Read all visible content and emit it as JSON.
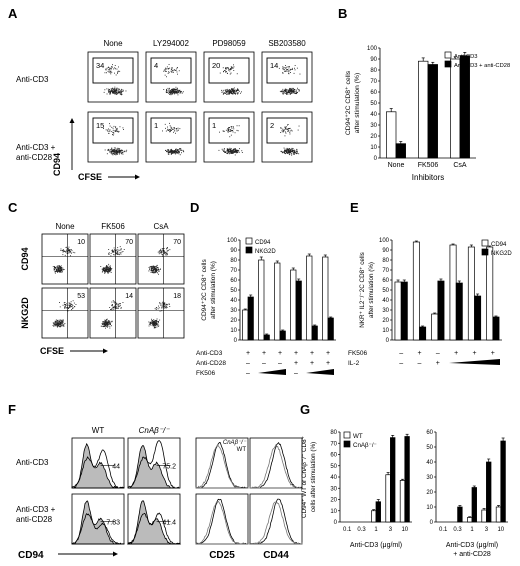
{
  "panels": [
    "A",
    "B",
    "C",
    "D",
    "E",
    "F",
    "G"
  ],
  "A": {
    "columns": [
      "None",
      "LY294002",
      "PD98059",
      "SB203580"
    ],
    "rows": [
      "Anti-CD3",
      [
        "Anti-CD3 +",
        "anti-CD28"
      ]
    ],
    "values": [
      [
        "34",
        "4",
        "20",
        "14"
      ],
      [
        "15",
        "1",
        "1",
        "2"
      ]
    ],
    "ylabel": "CD94",
    "xlabel": "CFSE"
  },
  "C": {
    "columns": [
      "None",
      "FK506",
      "CsA"
    ],
    "rows": [
      "CD94",
      "NKG2D"
    ],
    "values": [
      [
        "10",
        "70",
        "70"
      ],
      [
        "53",
        "14",
        "18"
      ]
    ],
    "xlabel": "CFSE"
  },
  "F": {
    "columns": [
      "WT",
      "CnAβ⁻/⁻"
    ],
    "rows": [
      "Anti-CD3",
      [
        "Anti-CD3 +",
        "anti-CD28"
      ]
    ],
    "values": [
      [
        "44",
        "75.2"
      ],
      [
        "7.83",
        "41.4"
      ]
    ],
    "xlabels": [
      "CD94",
      "CD25",
      "CD44"
    ],
    "overlay_legend": [
      "CnAβ⁻/⁻",
      "WT"
    ]
  },
  "chart_data": [
    {
      "panel": "B",
      "type": "bar",
      "categories": [
        "None",
        "FK506",
        "CsA"
      ],
      "series": [
        {
          "name": "Anti-CD3",
          "values": [
            42,
            88,
            90
          ],
          "errors": [
            3,
            3,
            2
          ],
          "color": "#ffffff"
        },
        {
          "name": "Anti-CD3 + anti-CD28",
          "values": [
            13,
            85,
            93
          ],
          "errors": [
            2,
            2,
            3
          ],
          "color": "#000000"
        }
      ],
      "ylabel": [
        "CD94⁺2C CD8⁺ cells",
        "after stimulation (%)"
      ],
      "xlabel": "Inhibitors",
      "ylim": [
        0,
        100
      ],
      "yticks": [
        "0",
        "10",
        "20",
        "30",
        "40",
        "50",
        "60",
        "70",
        "80",
        "90",
        "100"
      ]
    },
    {
      "panel": "D",
      "type": "bar",
      "groups": 6,
      "series": [
        {
          "name": "CD94",
          "values": [
            30,
            80,
            77,
            70,
            84,
            83
          ],
          "errors": [
            1,
            3,
            2,
            2,
            2,
            2
          ],
          "color": "#ffffff"
        },
        {
          "name": "NKG2D",
          "values": [
            43,
            5,
            9,
            59,
            14,
            22
          ],
          "errors": [
            2,
            1,
            1,
            2,
            1,
            1
          ],
          "color": "#000000"
        }
      ],
      "ylabel": [
        "CD94⁺2C CD8⁺ cells",
        "after stimulation (%)"
      ],
      "ylim": [
        0,
        100
      ],
      "yticks": [
        "0",
        "10",
        "20",
        "30",
        "40",
        "50",
        "60",
        "70",
        "80",
        "90",
        "100"
      ],
      "conditions": [
        {
          "label": "Anti-CD3",
          "marks": [
            "+",
            "+",
            "+",
            "+",
            "+",
            "+"
          ]
        },
        {
          "label": "Anti-CD28",
          "marks": [
            "–",
            "–",
            "–",
            "+",
            "+",
            "+"
          ]
        },
        {
          "label": "FK506",
          "marks": [
            "–",
            "ramp",
            "ramp",
            "–",
            "ramp",
            "ramp"
          ]
        }
      ]
    },
    {
      "panel": "E",
      "type": "bar",
      "groups": 6,
      "series": [
        {
          "name": "CD94",
          "values": [
            58,
            98,
            26,
            95,
            93,
            93
          ],
          "errors": [
            2,
            1,
            1,
            1,
            2,
            1
          ],
          "color": "#ffffff"
        },
        {
          "name": "NKG2D",
          "values": [
            58,
            13,
            59,
            57,
            44,
            23
          ],
          "errors": [
            2,
            1,
            2,
            2,
            2,
            1
          ],
          "color": "#000000"
        }
      ],
      "ylabel": [
        "NKR⁺ IL2⁻/⁻2C CD8⁺ cells",
        "after stimulation (%)"
      ],
      "ylim": [
        0,
        100
      ],
      "yticks": [
        "0",
        "10",
        "20",
        "30",
        "40",
        "50",
        "60",
        "70",
        "80",
        "90",
        "100"
      ],
      "conditions": [
        {
          "label": "FK506",
          "marks": [
            "–",
            "+",
            "–",
            "+",
            "+",
            "+"
          ]
        },
        {
          "label": "IL-2",
          "marks": [
            "–",
            "–",
            "+",
            "ramp",
            "ramp",
            "ramp"
          ]
        }
      ]
    },
    {
      "panel": "G-left",
      "type": "bar",
      "categories": [
        "0.1",
        "0.3",
        "1",
        "3",
        "10"
      ],
      "series": [
        {
          "name": "WT",
          "values": [
            0,
            0,
            10,
            42,
            37
          ],
          "errors": [
            0,
            0,
            1,
            2,
            1
          ],
          "color": "#ffffff"
        },
        {
          "name": "CnAβ⁻/⁻",
          "values": [
            0,
            0,
            18,
            75,
            76
          ],
          "errors": [
            0,
            0,
            2,
            2,
            2
          ],
          "color": "#000000"
        }
      ],
      "ylabel": [
        "CD94⁺ WT or CnAβ⁻/⁻ CD8⁺",
        "cells after stimulation (%)"
      ],
      "xlabel": "Anti-CD3 (μg/ml)",
      "ylim": [
        0,
        80
      ],
      "yticks": [
        "0",
        "10",
        "20",
        "30",
        "40",
        "50",
        "60",
        "70",
        "80"
      ]
    },
    {
      "panel": "G-right",
      "type": "bar",
      "categories": [
        "0.1",
        "0.3",
        "1",
        "3",
        "10"
      ],
      "series": [
        {
          "name": "WT",
          "values": [
            0,
            0,
            3,
            8,
            10
          ],
          "errors": [
            0,
            0,
            0.5,
            1,
            1
          ],
          "color": "#ffffff"
        },
        {
          "name": "CnAβ⁻/⁻",
          "values": [
            0,
            10,
            23,
            40,
            54
          ],
          "errors": [
            0,
            1,
            1,
            2,
            2
          ],
          "color": "#000000"
        }
      ],
      "xlabel": [
        "Anti-CD3 (μg/ml)",
        "+ anti-CD28"
      ],
      "ylim": [
        0,
        60
      ],
      "yticks": [
        "0",
        "10",
        "20",
        "30",
        "40",
        "50",
        "60"
      ]
    }
  ]
}
